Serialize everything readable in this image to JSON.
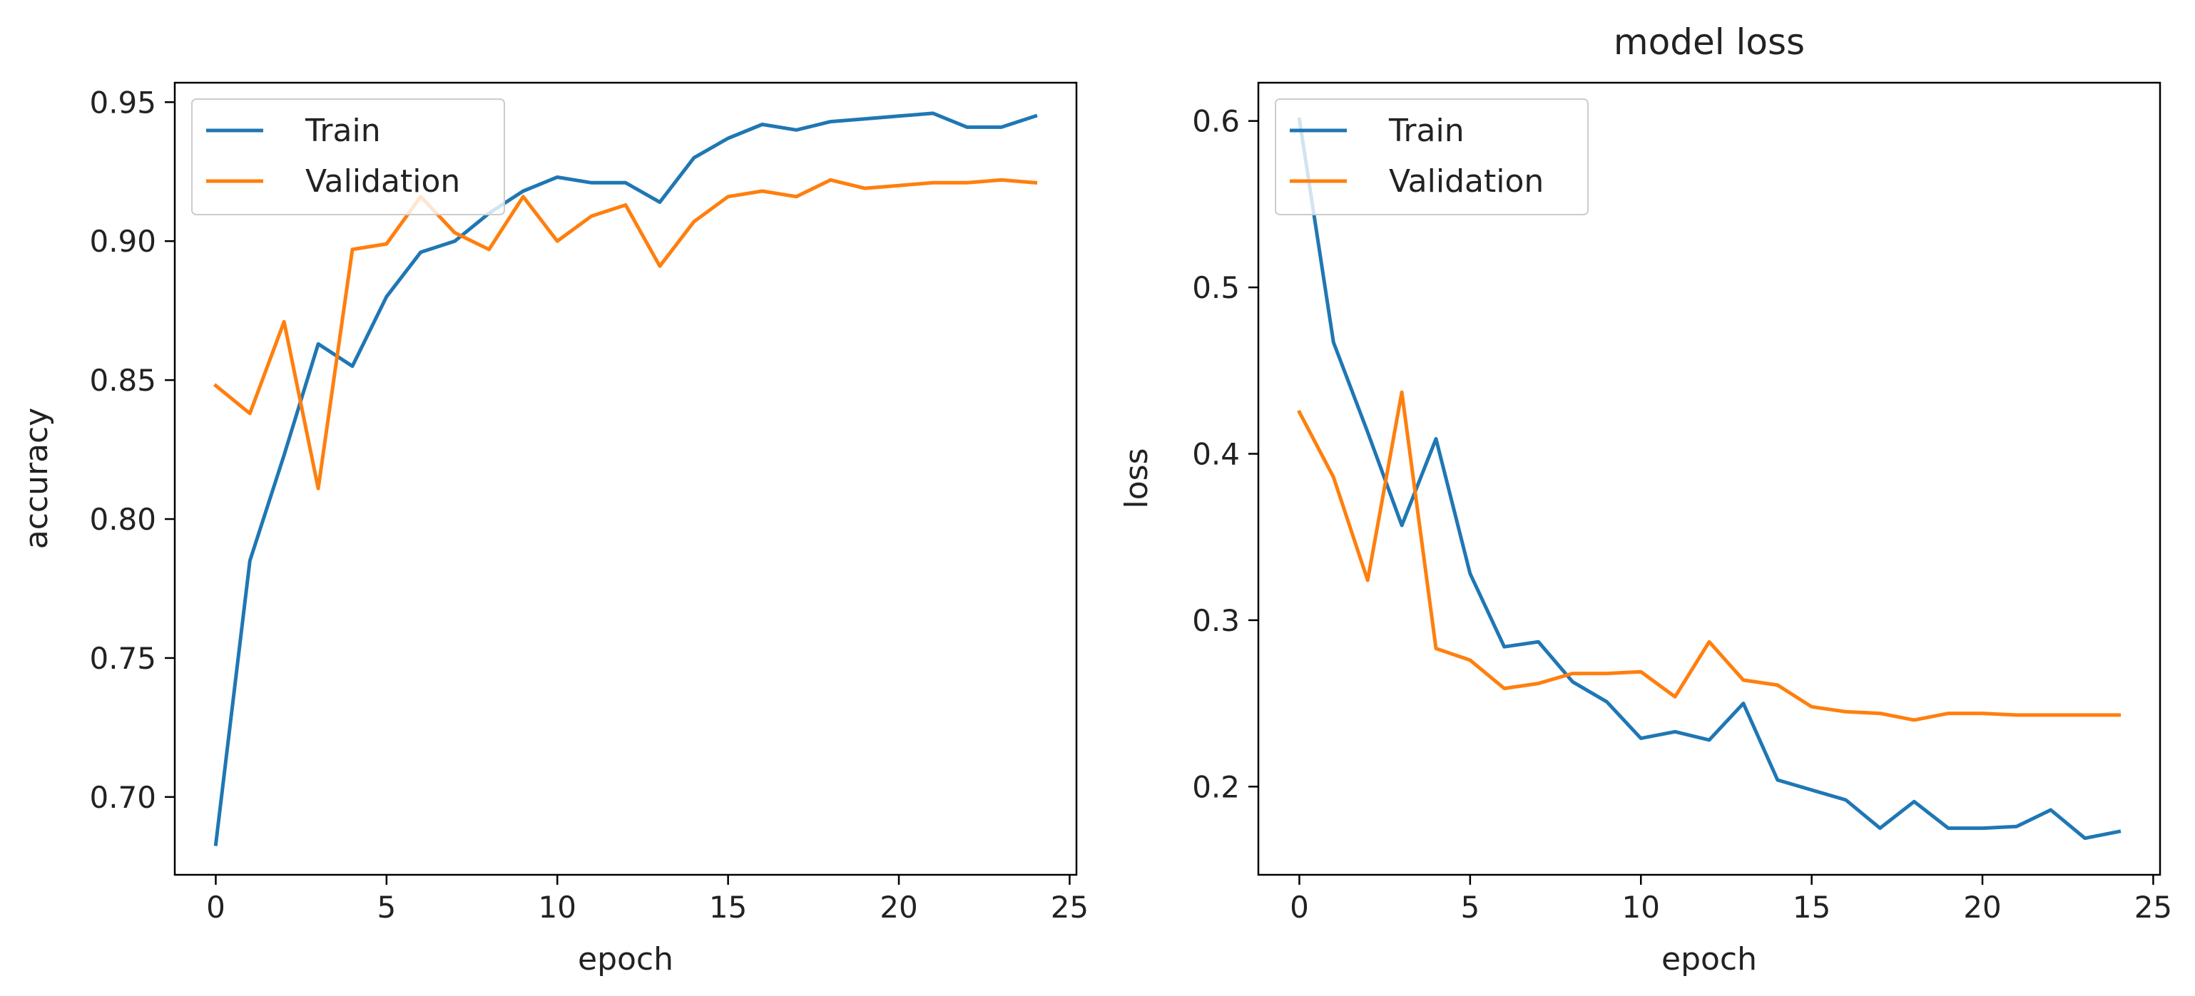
{
  "figure": {
    "background": "#ffffff"
  },
  "chart_data": [
    {
      "type": "line",
      "title": "",
      "xlabel": "epoch",
      "ylabel": "accuracy",
      "xlim": [
        -1.2,
        25.2
      ],
      "ylim": [
        0.672,
        0.957
      ],
      "xticks": [
        0,
        5,
        10,
        15,
        20,
        25
      ],
      "xtick_labels": [
        "0",
        "5",
        "10",
        "15",
        "20",
        "25"
      ],
      "yticks": [
        0.7,
        0.75,
        0.8,
        0.85,
        0.9,
        0.95
      ],
      "ytick_labels": [
        "0.70",
        "0.75",
        "0.80",
        "0.85",
        "0.90",
        "0.95"
      ],
      "grid": false,
      "legend_position": "upper-left",
      "x": [
        0,
        1,
        2,
        3,
        4,
        5,
        6,
        7,
        8,
        9,
        10,
        11,
        12,
        13,
        14,
        15,
        16,
        17,
        18,
        19,
        20,
        21,
        22,
        23,
        24
      ],
      "series": [
        {
          "name": "Train",
          "color": "#1f77b4",
          "values": [
            0.683,
            0.785,
            0.823,
            0.863,
            0.855,
            0.88,
            0.896,
            0.9,
            0.91,
            0.918,
            0.923,
            0.921,
            0.921,
            0.914,
            0.93,
            0.937,
            0.942,
            0.94,
            0.943,
            0.944,
            0.945,
            0.946,
            0.941,
            0.941,
            0.945
          ]
        },
        {
          "name": "Validation",
          "color": "#ff7f0e",
          "values": [
            0.848,
            0.838,
            0.871,
            0.811,
            0.897,
            0.899,
            0.916,
            0.903,
            0.897,
            0.916,
            0.9,
            0.909,
            0.913,
            0.891,
            0.907,
            0.916,
            0.918,
            0.916,
            0.922,
            0.919,
            0.92,
            0.921,
            0.921,
            0.922,
            0.921
          ]
        }
      ]
    },
    {
      "type": "line",
      "title": "model loss",
      "xlabel": "epoch",
      "ylabel": "loss",
      "xlim": [
        -1.2,
        25.2
      ],
      "ylim": [
        0.147,
        0.623
      ],
      "xticks": [
        0,
        5,
        10,
        15,
        20,
        25
      ],
      "xtick_labels": [
        "0",
        "5",
        "10",
        "15",
        "20",
        "25"
      ],
      "yticks": [
        0.2,
        0.3,
        0.4,
        0.5,
        0.6
      ],
      "ytick_labels": [
        "0.2",
        "0.3",
        "0.4",
        "0.5",
        "0.6"
      ],
      "grid": false,
      "legend_position": "upper-left",
      "x": [
        0,
        1,
        2,
        3,
        4,
        5,
        6,
        7,
        8,
        9,
        10,
        11,
        12,
        13,
        14,
        15,
        16,
        17,
        18,
        19,
        20,
        21,
        22,
        23,
        24
      ],
      "series": [
        {
          "name": "Train",
          "color": "#1f77b4",
          "values": [
            0.601,
            0.467,
            0.413,
            0.357,
            0.409,
            0.328,
            0.284,
            0.287,
            0.263,
            0.251,
            0.229,
            0.233,
            0.228,
            0.25,
            0.204,
            0.198,
            0.192,
            0.175,
            0.191,
            0.175,
            0.175,
            0.176,
            0.186,
            0.169,
            0.173
          ]
        },
        {
          "name": "Validation",
          "color": "#ff7f0e",
          "values": [
            0.425,
            0.386,
            0.324,
            0.437,
            0.283,
            0.276,
            0.259,
            0.262,
            0.268,
            0.268,
            0.269,
            0.254,
            0.287,
            0.264,
            0.261,
            0.248,
            0.245,
            0.244,
            0.24,
            0.244,
            0.244,
            0.243,
            0.243,
            0.243,
            0.243
          ]
        }
      ]
    }
  ]
}
